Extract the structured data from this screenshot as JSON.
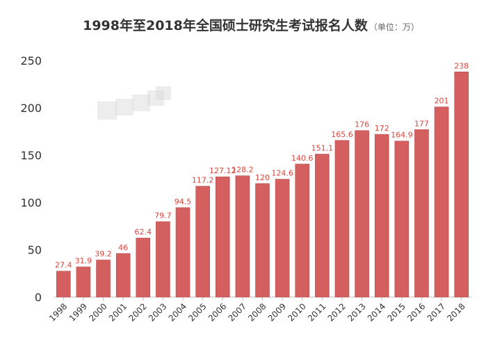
{
  "title": {
    "main": "1998年至2018年全国硕士研究生考试报名人数",
    "unit": "（单位：万）"
  },
  "colors": {
    "bar": "#d35f5f",
    "bar_edge": "#b94a4a",
    "label": "#d9443b",
    "axis_text": "#333333",
    "axis_line": "#bbbbbb"
  },
  "chart_data": {
    "type": "bar",
    "title": "1998年至2018年全国硕士研究生考试报名人数",
    "ylabel": "",
    "xlabel": "",
    "categories": [
      "1998",
      "1999",
      "2000",
      "2001",
      "2002",
      "2003",
      "2004",
      "2005",
      "2006",
      "2007",
      "2008",
      "2009",
      "2010",
      "2011",
      "2012",
      "2013",
      "2014",
      "2015",
      "2016",
      "2017",
      "2018"
    ],
    "values": [
      27.4,
      31.9,
      39.2,
      46,
      62.4,
      79.7,
      94.5,
      117.2,
      127.12,
      128.2,
      120,
      124.6,
      140.6,
      151.1,
      165.6,
      176,
      172,
      164.9,
      177,
      201,
      238
    ],
    "value_labels": [
      "27.4",
      "31.9",
      "39.2",
      "46",
      "62.4",
      "79.7",
      "94.5",
      "117.2",
      "127.12",
      "128.2",
      "120",
      "124.6",
      "140.6",
      "151.1",
      "165.6",
      "176",
      "172",
      "164.9",
      "177",
      "201",
      "238"
    ],
    "ylim": [
      0,
      250
    ],
    "yticks": [
      "0",
      "50",
      "100",
      "150",
      "200",
      "250"
    ],
    "grid": false,
    "legend": "none"
  }
}
